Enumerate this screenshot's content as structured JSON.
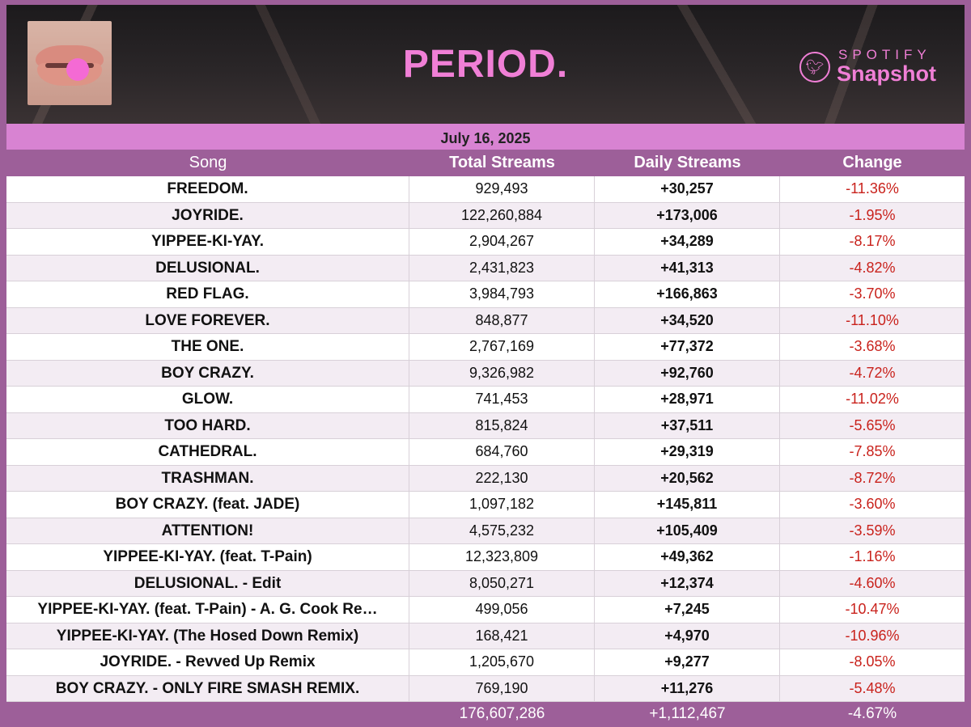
{
  "header": {
    "album_title": "PERIOD.",
    "brand_top": "SPOTIFY",
    "brand_bottom": "Snapshot",
    "brand_icon": "twitter-bird-icon",
    "album_art_icon": "album-art-lips-pill"
  },
  "date": "July 16, 2025",
  "columns": {
    "song": "Song",
    "total": "Total Streams",
    "daily": "Daily Streams",
    "change": "Change"
  },
  "rows": [
    {
      "song": "FREEDOM.",
      "total": "929,493",
      "daily": "+30,257",
      "change": "-11.36%"
    },
    {
      "song": "JOYRIDE.",
      "total": "122,260,884",
      "daily": "+173,006",
      "change": "-1.95%"
    },
    {
      "song": "YIPPEE-KI-YAY.",
      "total": "2,904,267",
      "daily": "+34,289",
      "change": "-8.17%"
    },
    {
      "song": "DELUSIONAL.",
      "total": "2,431,823",
      "daily": "+41,313",
      "change": "-4.82%"
    },
    {
      "song": "RED FLAG.",
      "total": "3,984,793",
      "daily": "+166,863",
      "change": "-3.70%"
    },
    {
      "song": "LOVE FOREVER.",
      "total": "848,877",
      "daily": "+34,520",
      "change": "-11.10%"
    },
    {
      "song": "THE ONE.",
      "total": "2,767,169",
      "daily": "+77,372",
      "change": "-3.68%"
    },
    {
      "song": "BOY CRAZY.",
      "total": "9,326,982",
      "daily": "+92,760",
      "change": "-4.72%"
    },
    {
      "song": "GLOW.",
      "total": "741,453",
      "daily": "+28,971",
      "change": "-11.02%"
    },
    {
      "song": "TOO HARD.",
      "total": "815,824",
      "daily": "+37,511",
      "change": "-5.65%"
    },
    {
      "song": "CATHEDRAL.",
      "total": "684,760",
      "daily": "+29,319",
      "change": "-7.85%"
    },
    {
      "song": "TRASHMAN.",
      "total": "222,130",
      "daily": "+20,562",
      "change": "-8.72%"
    },
    {
      "song": "BOY CRAZY. (feat. JADE)",
      "total": "1,097,182",
      "daily": "+145,811",
      "change": "-3.60%"
    },
    {
      "song": "ATTENTION!",
      "total": "4,575,232",
      "daily": "+105,409",
      "change": "-3.59%"
    },
    {
      "song": "YIPPEE-KI-YAY. (feat. T-Pain)",
      "total": "12,323,809",
      "daily": "+49,362",
      "change": "-1.16%"
    },
    {
      "song": "DELUSIONAL. - Edit",
      "total": "8,050,271",
      "daily": "+12,374",
      "change": "-4.60%"
    },
    {
      "song": "YIPPEE-KI-YAY. (feat. T-Pain) - A. G. Cook Re…",
      "total": "499,056",
      "daily": "+7,245",
      "change": "-10.47%"
    },
    {
      "song": "YIPPEE-KI-YAY. (The Hosed Down Remix)",
      "total": "168,421",
      "daily": "+4,970",
      "change": "-10.96%"
    },
    {
      "song": "JOYRIDE. - Revved Up Remix",
      "total": "1,205,670",
      "daily": "+9,277",
      "change": "-8.05%"
    },
    {
      "song": "BOY CRAZY. - ONLY FIRE SMASH REMIX.",
      "total": "769,190",
      "daily": "+11,276",
      "change": "-5.48%"
    }
  ],
  "totals": {
    "total": "176,607,286",
    "daily": "+1,112,467",
    "change": "-4.67%"
  },
  "colors": {
    "frame": "#9d5f99",
    "date_bar": "#d883d2",
    "title_pink": "#f07fd6",
    "negative_change": "#c9221c"
  }
}
